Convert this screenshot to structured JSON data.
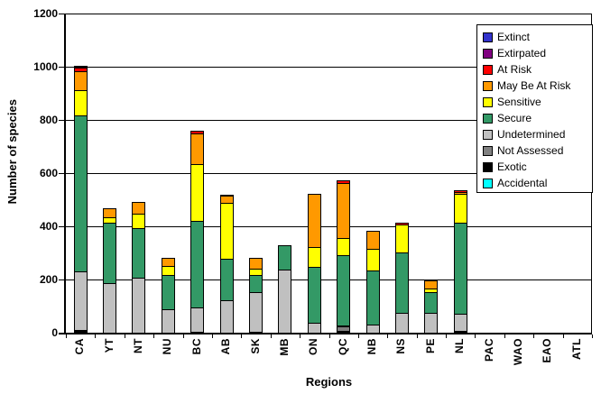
{
  "chart_data": {
    "type": "bar",
    "stacked": true,
    "title": "",
    "xlabel": "Regions",
    "ylabel": "Number of species",
    "ylim": [
      0,
      1200
    ],
    "ytick_interval": 200,
    "ytick_labels": [
      "0",
      "200",
      "400",
      "600",
      "800",
      "1000",
      "1200"
    ],
    "grid": true,
    "legend_position": "top-right",
    "categories": [
      "CA",
      "YT",
      "NT",
      "NU",
      "BC",
      "AB",
      "SK",
      "MB",
      "ON",
      "QC",
      "NB",
      "NS",
      "PE",
      "NL",
      "PAC",
      "WAO",
      "EAO",
      "ATL"
    ],
    "series": [
      {
        "name": "Accidental",
        "color": "#00FFFF",
        "values": [
          0,
          0,
          0,
          0,
          0,
          0,
          0,
          0,
          0,
          0,
          0,
          0,
          0,
          0,
          0,
          0,
          0,
          0
        ]
      },
      {
        "name": "Exotic",
        "color": "#000000",
        "values": [
          10,
          0,
          0,
          0,
          4,
          0,
          4,
          0,
          0,
          8,
          0,
          0,
          0,
          7,
          0,
          0,
          0,
          0
        ]
      },
      {
        "name": "Not Assessed",
        "color": "#808080",
        "values": [
          0,
          0,
          0,
          0,
          0,
          0,
          0,
          0,
          0,
          15,
          0,
          0,
          0,
          0,
          0,
          0,
          0,
          0
        ]
      },
      {
        "name": "Undetermined",
        "color": "#C0C0C0",
        "values": [
          222,
          188,
          207,
          89,
          90,
          122,
          147,
          236,
          37,
          5,
          29,
          74,
          74,
          65,
          0,
          0,
          0,
          0
        ]
      },
      {
        "name": "Secure",
        "color": "#339966",
        "values": [
          585,
          224,
          187,
          127,
          328,
          156,
          65,
          93,
          210,
          262,
          204,
          229,
          77,
          343,
          0,
          0,
          0,
          0
        ]
      },
      {
        "name": "Sensitive",
        "color": "#FFFF00",
        "values": [
          96,
          21,
          54,
          36,
          211,
          210,
          26,
          0,
          74,
          66,
          82,
          104,
          14,
          108,
          0,
          0,
          0,
          0
        ]
      },
      {
        "name": "May Be At Risk",
        "color": "#FF9900",
        "values": [
          71,
          35,
          42,
          29,
          116,
          26,
          39,
          0,
          200,
          208,
          68,
          0,
          33,
          6,
          0,
          0,
          0,
          0
        ]
      },
      {
        "name": "At Risk",
        "color": "#FF0000",
        "values": [
          12,
          0,
          0,
          0,
          11,
          6,
          0,
          0,
          0,
          8,
          0,
          8,
          0,
          5,
          0,
          0,
          0,
          0
        ]
      },
      {
        "name": "Extirpated",
        "color": "#800080",
        "values": [
          5,
          0,
          0,
          0,
          0,
          0,
          0,
          0,
          0,
          0,
          0,
          0,
          0,
          0,
          0,
          0,
          0,
          0
        ]
      },
      {
        "name": "Extinct",
        "color": "#3333CC",
        "values": [
          3,
          0,
          0,
          0,
          0,
          0,
          0,
          0,
          0,
          0,
          0,
          0,
          0,
          0,
          0,
          0,
          0,
          0
        ]
      }
    ]
  }
}
